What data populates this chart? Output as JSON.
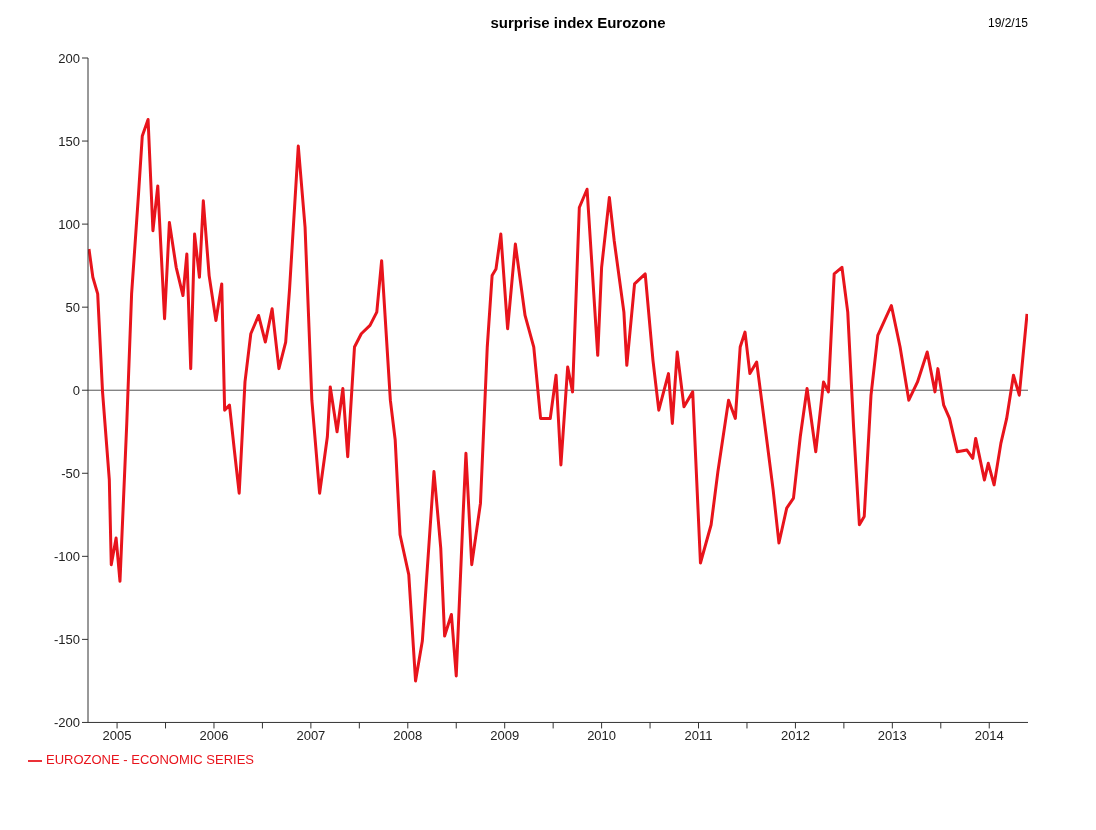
{
  "chart_data": {
    "type": "line",
    "title": "surprise index Eurozone",
    "annotations": [
      "19/2/15"
    ],
    "x": [
      2005.21,
      2005.25,
      2005.3,
      2005.35,
      2005.42,
      2005.44,
      2005.49,
      2005.53,
      2005.6,
      2005.65,
      2005.72,
      2005.76,
      2005.82,
      2005.87,
      2005.92,
      2005.99,
      2006.04,
      2006.11,
      2006.18,
      2006.22,
      2006.26,
      2006.3,
      2006.35,
      2006.39,
      2006.45,
      2006.52,
      2006.58,
      2006.61,
      2006.66,
      2006.71,
      2006.76,
      2006.82,
      2006.88,
      2006.96,
      2007.03,
      2007.1,
      2007.17,
      2007.24,
      2007.28,
      2007.37,
      2007.44,
      2007.51,
      2007.59,
      2007.67,
      2007.7,
      2007.77,
      2007.83,
      2007.88,
      2007.95,
      2008.02,
      2008.11,
      2008.18,
      2008.23,
      2008.32,
      2008.37,
      2008.42,
      2008.51,
      2008.58,
      2008.65,
      2008.77,
      2008.84,
      2008.88,
      2008.95,
      2009.0,
      2009.07,
      2009.1,
      2009.16,
      2009.25,
      2009.32,
      2009.37,
      2009.41,
      2009.46,
      2009.53,
      2009.61,
      2009.71,
      2009.8,
      2009.87,
      2009.97,
      2010.03,
      2010.08,
      2010.15,
      2010.2,
      2010.27,
      2010.35,
      2010.46,
      2010.5,
      2010.58,
      2010.63,
      2010.73,
      2010.76,
      2010.84,
      2010.95,
      2011.03,
      2011.09,
      2011.19,
      2011.23,
      2011.28,
      2011.35,
      2011.44,
      2011.52,
      2011.63,
      2011.7,
      2011.81,
      2011.88,
      2011.93,
      2011.98,
      2012.03,
      2012.1,
      2012.2,
      2012.27,
      2012.33,
      2012.41,
      2012.48,
      2012.55,
      2012.62,
      2012.71,
      2012.79,
      2012.84,
      2012.9,
      2012.98,
      2013.04,
      2013.1,
      2013.16,
      2013.21,
      2013.28,
      2013.35,
      2013.42,
      2013.49,
      2013.58,
      2013.67,
      2013.76,
      2013.86,
      2013.94,
      2013.97,
      2014.03,
      2014.09,
      2014.17,
      2014.27,
      2014.33,
      2014.36,
      2014.45,
      2014.49,
      2014.55,
      2014.62,
      2014.68,
      2014.75,
      2014.81,
      2014.89
    ],
    "series": [
      {
        "name": "EUROZONE - ECONOMIC SERIES",
        "color": "#e8141c",
        "values": [
          85,
          68,
          58,
          -1,
          -54,
          -105,
          -89,
          -115,
          -20,
          58,
          117,
          153,
          163,
          96,
          123,
          43,
          101,
          74,
          57,
          82,
          13,
          94,
          68,
          114,
          69,
          42,
          64,
          -12,
          -9,
          -36,
          -62,
          5,
          34,
          45,
          29,
          49,
          13,
          29,
          61,
          147,
          98,
          -6,
          -62,
          -28,
          2,
          -25,
          1,
          -40,
          26,
          34,
          39,
          47,
          78,
          -6,
          -30,
          -87,
          -111,
          -175,
          -151,
          -49,
          -95,
          -148,
          -135,
          -172,
          -76,
          -38,
          -105,
          -68,
          26,
          69,
          73,
          94,
          37,
          88,
          45,
          26,
          -17,
          -17,
          9,
          -45,
          14,
          -1,
          110,
          121,
          21,
          74,
          116,
          90,
          47,
          15,
          64,
          70,
          18,
          -12,
          10,
          -20,
          23,
          -10,
          -1,
          -104,
          -81,
          -49,
          -6,
          -17,
          26,
          35,
          10,
          17,
          -28,
          -60,
          -92,
          -71,
          -65,
          -28,
          1,
          -37,
          5,
          -1,
          70,
          74,
          47,
          -22,
          -81,
          -76,
          -3,
          33,
          42,
          51,
          26,
          -6,
          5,
          23,
          -1,
          13,
          -9,
          -17,
          -37,
          -36,
          -41,
          -29,
          -54,
          -44,
          -57,
          -32,
          -17,
          9,
          -3,
          46
        ]
      }
    ],
    "xlim": [
      2005.2,
      2014.9
    ],
    "xticks": [
      {
        "value": 2005.5,
        "label": "2005"
      },
      {
        "value": 2006,
        "label": null
      },
      {
        "value": 2006.5,
        "label": "2006"
      },
      {
        "value": 2007,
        "label": null
      },
      {
        "value": 2007.5,
        "label": "2007"
      },
      {
        "value": 2008,
        "label": null
      },
      {
        "value": 2008.5,
        "label": "2008"
      },
      {
        "value": 2009,
        "label": null
      },
      {
        "value": 2009.5,
        "label": "2009"
      },
      {
        "value": 2010,
        "label": null
      },
      {
        "value": 2010.5,
        "label": "2010"
      },
      {
        "value": 2011,
        "label": null
      },
      {
        "value": 2011.5,
        "label": "2011"
      },
      {
        "value": 2012,
        "label": null
      },
      {
        "value": 2012.5,
        "label": "2012"
      },
      {
        "value": 2013,
        "label": null
      },
      {
        "value": 2013.5,
        "label": "2013"
      },
      {
        "value": 2014,
        "label": null
      },
      {
        "value": 2014.5,
        "label": "2014"
      }
    ],
    "ylim": [
      -200,
      200
    ],
    "yticks": [
      -200,
      -150,
      -100,
      -50,
      0,
      50,
      100,
      150,
      200
    ],
    "ref_lines": [
      {
        "axis": "y",
        "value": 0,
        "label": null,
        "color": "#555555"
      }
    ],
    "grid": false,
    "legend": "bottom left",
    "marker": "none",
    "line_style": "solid"
  }
}
